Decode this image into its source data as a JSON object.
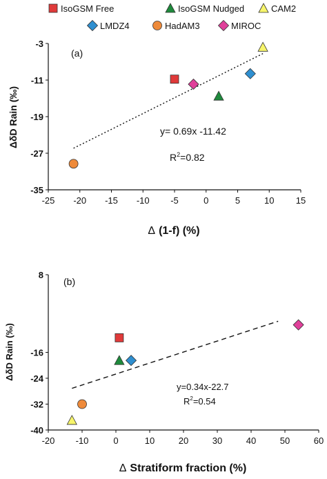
{
  "legend": [
    {
      "name": "IsoGSM Free",
      "marker": "square",
      "color": "#e03a3a"
    },
    {
      "name": "IsoGSM Nudged",
      "marker": "triangle",
      "color": "#1e8a3c"
    },
    {
      "name": "CAM2",
      "marker": "triangle",
      "color": "#f7f56b"
    },
    {
      "name": "LMDZ4",
      "marker": "diamond",
      "color": "#2f8fd0"
    },
    {
      "name": "HadAM3",
      "marker": "circle",
      "color": "#ee8a3a"
    },
    {
      "name": "MIROC",
      "marker": "diamond",
      "color": "#e0409a"
    }
  ],
  "chart_data": [
    {
      "type": "scatter",
      "panel_label": "(a)",
      "xlabel_prefix": "Δ",
      "xlabel_rest": "(1-f) (%)",
      "ylabel": "ΔδD Rain (‰)",
      "xlim": [
        -25,
        15
      ],
      "ylim": [
        -35,
        -3
      ],
      "xticks": [
        "-25",
        "-20",
        "-15",
        "-10",
        "-5",
        "0",
        "5",
        "10",
        "15"
      ],
      "yticks": [
        "-3",
        "-11",
        "-19",
        "-27",
        "-35"
      ],
      "points": [
        {
          "series": "IsoGSM Free",
          "x": -5,
          "y": -10.8
        },
        {
          "series": "IsoGSM Nudged",
          "x": 2,
          "y": -14.5
        },
        {
          "series": "CAM2",
          "x": 9,
          "y": -3.8
        },
        {
          "series": "LMDZ4",
          "x": 7,
          "y": -9.6
        },
        {
          "series": "HadAM3",
          "x": -21,
          "y": -29.3
        },
        {
          "series": "MIROC",
          "x": -2,
          "y": -11.9
        }
      ],
      "fit": {
        "slope": 0.69,
        "intercept": -11.42,
        "x_range": [
          -21,
          9
        ],
        "style": "dotted"
      },
      "equation": "y= 0.69x -11.42",
      "r2_prefix": "R",
      "r2_value": "=0.82"
    },
    {
      "type": "scatter",
      "panel_label": "(b)",
      "xlabel_prefix": "Δ",
      "xlabel_rest": "Stratiform fraction (%)",
      "ylabel": "ΔδD Rain (‰)",
      "xlim": [
        -20,
        60
      ],
      "ylim": [
        -40,
        8
      ],
      "xticks": [
        "-20",
        "-10",
        "0",
        "10",
        "20",
        "30",
        "40",
        "50",
        "60"
      ],
      "yticks": [
        "8",
        "-16",
        "-24",
        "-32",
        "-40"
      ],
      "ytick_values": [
        8,
        -16,
        -24,
        -32,
        -40
      ],
      "points": [
        {
          "series": "IsoGSM Free",
          "x": 1,
          "y": -11.5
        },
        {
          "series": "IsoGSM Nudged",
          "x": 1,
          "y": -18.5
        },
        {
          "series": "CAM2",
          "x": -13,
          "y": -37
        },
        {
          "series": "LMDZ4",
          "x": 4.5,
          "y": -18.5
        },
        {
          "series": "HadAM3",
          "x": -10,
          "y": -32
        },
        {
          "series": "MIROC",
          "x": 54,
          "y": -7.5
        }
      ],
      "fit": {
        "slope": 0.34,
        "intercept": -22.7,
        "x_range": [
          -13,
          48
        ],
        "style": "dashed"
      },
      "equation": "y=0.34x-22.7",
      "r2_prefix": "R",
      "r2_value": "=0.54"
    }
  ]
}
